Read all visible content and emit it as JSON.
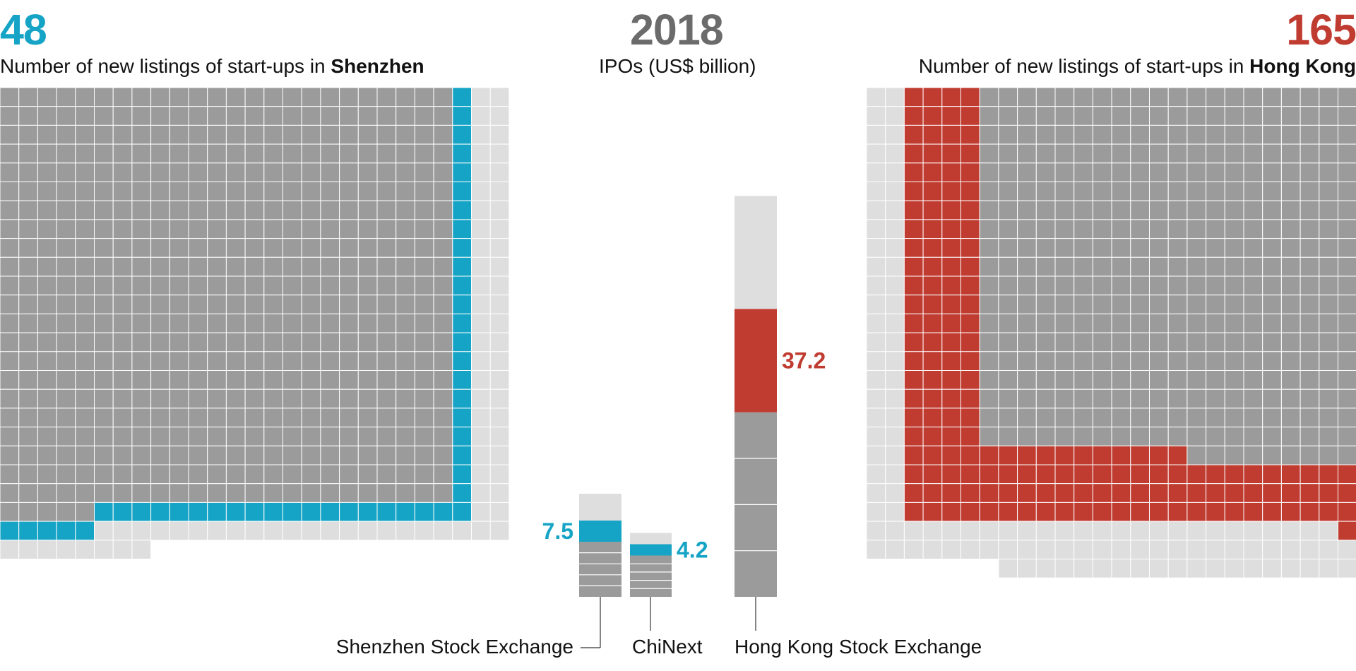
{
  "chart_data": [
    {
      "type": "waffle",
      "region": "Shenzhen",
      "big_number": "48",
      "subtitle_prefix": "Number of new listings of start-ups in ",
      "subtitle_bold": "Shenzhen",
      "highlight_count": 48,
      "colors": {
        "highlight": "#16a4c6",
        "dark": "#9b9b9b",
        "light": "#dedede"
      }
    },
    {
      "type": "bar",
      "title": "2018",
      "subtitle": "IPOs (US$ billion)",
      "categories": [
        "Shenzhen Stock Exchange",
        "ChiNext",
        "Hong Kong Stock Exchange"
      ],
      "values": [
        7.5,
        4.2,
        37.2
      ],
      "value_labels": [
        "7.5",
        "4.2",
        "37.2"
      ],
      "colors": {
        "Shenzhen Stock Exchange": "#16a4c6",
        "ChiNext": "#16a4c6",
        "Hong Kong Stock Exchange": "#c03b30"
      }
    },
    {
      "type": "waffle",
      "region": "Hong Kong",
      "big_number": "165",
      "subtitle_prefix": "Number of new listings of start-ups in ",
      "subtitle_bold": "Hong Kong",
      "highlight_count": 165,
      "colors": {
        "highlight": "#c03b30",
        "dark": "#9b9b9b",
        "light": "#dedede"
      }
    }
  ]
}
